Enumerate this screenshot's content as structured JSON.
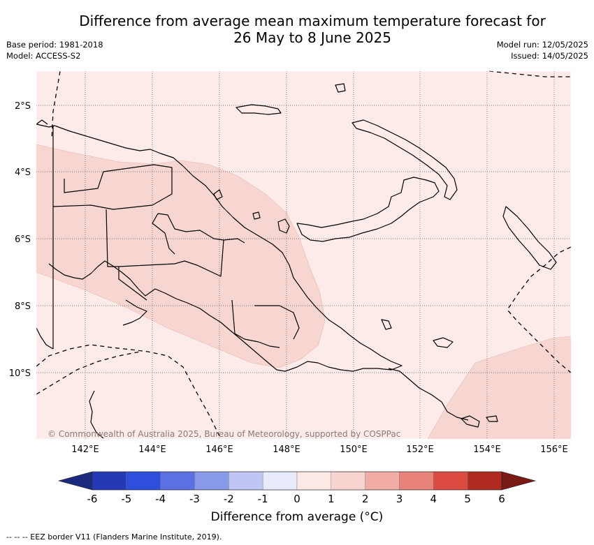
{
  "title_line1": "Difference from average mean maximum temperature forecast for",
  "title_line2": "26 May to 8 June 2025",
  "meta_left": [
    "Base period: 1981-2018",
    "Model: ACCESS-S2"
  ],
  "meta_right": [
    "Model run: 12/05/2025",
    "Issued: 14/05/2025"
  ],
  "copyright": "© Commonwealth of Australia 2025, Bureau of Meteorology, supported by COSPPac",
  "map": {
    "lon_range": [
      140.5,
      156.5
    ],
    "lat_range": [
      -12.0,
      -1.0
    ],
    "lon_ticks": [
      {
        "value": 142,
        "label": "142°E"
      },
      {
        "value": 144,
        "label": "144°E"
      },
      {
        "value": 146,
        "label": "146°E"
      },
      {
        "value": 148,
        "label": "148°E"
      },
      {
        "value": 150,
        "label": "150°E"
      },
      {
        "value": 152,
        "label": "152°E"
      },
      {
        "value": 154,
        "label": "154°E"
      },
      {
        "value": 156,
        "label": "156°E"
      }
    ],
    "lat_ticks": [
      {
        "value": -2,
        "label": "2°S"
      },
      {
        "value": -4,
        "label": "4°S"
      },
      {
        "value": -6,
        "label": "6°S"
      },
      {
        "value": -8,
        "label": "8°S"
      },
      {
        "value": -10,
        "label": "10°S"
      }
    ],
    "background_class": "0 to 1",
    "warm_class": "1 to 2",
    "grid": true
  },
  "colorbar": {
    "label": "Difference from average (°C)",
    "ticks": [
      "-6",
      "-5",
      "-4",
      "-3",
      "-2",
      "-1",
      "0",
      "1",
      "2",
      "3",
      "4",
      "5",
      "6"
    ],
    "colors": [
      "#1c2a7e",
      "#2439b5",
      "#2d4fdc",
      "#5a70e3",
      "#8899ea",
      "#c0c6f4",
      "#e8ebfa",
      "#fce9e6",
      "#f7d4cf",
      "#f0aca5",
      "#e8837a",
      "#dc4b40",
      "#b02a22",
      "#7a1a14"
    ]
  },
  "footer": "--  --  -- EEZ border V11 (Flanders Marine Institute, 2019)."
}
